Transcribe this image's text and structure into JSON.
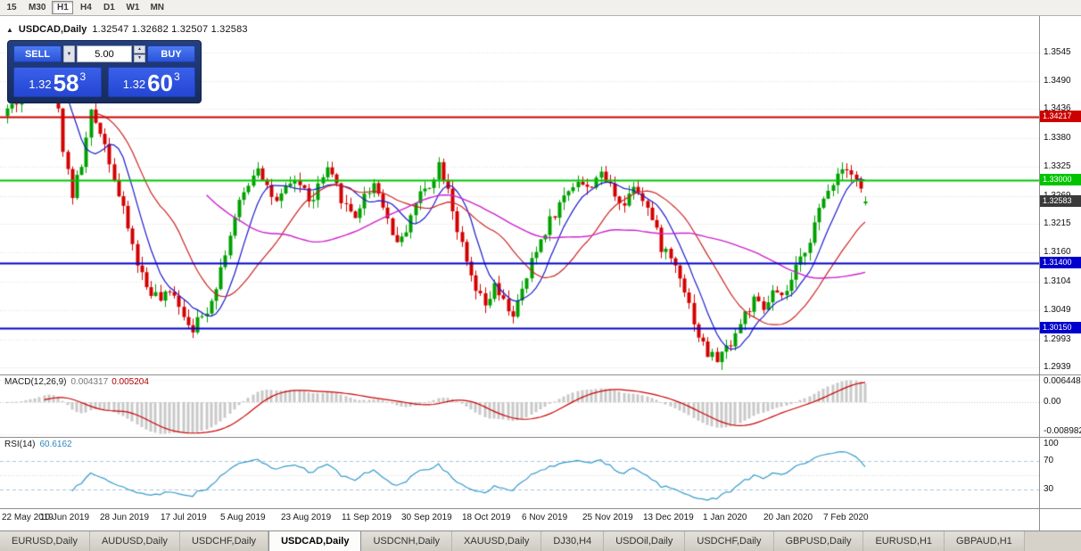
{
  "window": {
    "title": "USDCAD,Daily"
  },
  "toolbar": {
    "timeframes": [
      {
        "label": "15",
        "active": false
      },
      {
        "label": "M30",
        "active": false
      },
      {
        "label": "H1",
        "active": true
      },
      {
        "label": "H4",
        "active": false
      },
      {
        "label": "D1",
        "active": false
      },
      {
        "label": "W1",
        "active": false
      },
      {
        "label": "MN",
        "active": false
      }
    ]
  },
  "chart_header": {
    "symbol": "USDCAD,Daily",
    "ohlc": "1.32547 1.32682 1.32507 1.32583"
  },
  "trade_panel": {
    "sell_label": "SELL",
    "buy_label": "BUY",
    "volume": "5.00",
    "sell_price": {
      "small": "1.32",
      "big": "58",
      "sup": "3"
    },
    "buy_price": {
      "small": "1.32",
      "big": "60",
      "sup": "3"
    }
  },
  "icons": {
    "dropdown": "▼",
    "spin_up": "▲",
    "spin_down": "▼",
    "title_marker": "▲"
  },
  "price_axis": {
    "labels": [
      "1.3545",
      "1.3490",
      "1.3436",
      "1.3380",
      "1.3325",
      "1.3269",
      "1.3215",
      "1.3160",
      "1.3104",
      "1.3049",
      "1.2993",
      "1.2939"
    ]
  },
  "hlines": [
    {
      "price": 1.34217,
      "label": "1.34217",
      "color": "#cc0000",
      "width": 2
    },
    {
      "price": 1.33,
      "label": "1.33000",
      "color": "#00c400",
      "width": 2
    },
    {
      "price": 1.314,
      "label": "1.31400",
      "color": "#0000cc",
      "width": 2
    },
    {
      "price": 1.3015,
      "label": "1.30150",
      "color": "#0000cc",
      "width": 2
    }
  ],
  "current_price": {
    "label": "1.32583",
    "price": 1.32583,
    "bg": "#3a3a3a"
  },
  "macd_panel": {
    "name": "MACD(12,26,9)",
    "value": "0.004317",
    "signal_value": "0.005204",
    "axis_labels": [
      {
        "text": "0.006448",
        "v": 0.006448
      },
      {
        "text": "0.00",
        "v": 0
      },
      {
        "text": "-0.008982",
        "v": -0.008982
      }
    ]
  },
  "rsi_panel": {
    "name": "RSI(14)",
    "value": "60.6162",
    "axis_labels": [
      {
        "text": "100",
        "v": 100
      },
      {
        "text": "70",
        "v": 70
      },
      {
        "text": "30",
        "v": 30
      }
    ],
    "levels": [
      70,
      30
    ]
  },
  "date_axis": {
    "labels": [
      "22 May 2019",
      "10 Jun 2019",
      "28 Jun 2019",
      "17 Jul 2019",
      "5 Aug 2019",
      "23 Aug 2019",
      "11 Sep 2019",
      "30 Sep 2019",
      "18 Oct 2019",
      "6 Nov 2019",
      "25 Nov 2019",
      "13 Dec 2019",
      "1 Jan 2020",
      "20 Jan 2020",
      "7 Feb 2020"
    ]
  },
  "tabs": [
    {
      "label": "EURUSD,Daily",
      "active": false
    },
    {
      "label": "AUDUSD,Daily",
      "active": false
    },
    {
      "label": "USDCHF,Daily",
      "active": false
    },
    {
      "label": "USDCAD,Daily",
      "active": true
    },
    {
      "label": "USDCNH,Daily",
      "active": false
    },
    {
      "label": "XAUUSD,Daily",
      "active": false
    },
    {
      "label": "DJ30,H4",
      "active": false
    },
    {
      "label": "USDOil,Daily",
      "active": false
    },
    {
      "label": "USDCHF,Daily",
      "active": false
    },
    {
      "label": "GBPUSD,Daily",
      "active": false
    },
    {
      "label": "EURUSD,H1",
      "active": false
    },
    {
      "label": "GBPAUD,H1",
      "active": false
    }
  ],
  "colors": {
    "bull": "#00a000",
    "bear": "#d40000",
    "ma_fast": "#1a1acd",
    "ma_mid": "#cd2222",
    "ma_slow": "#cd22cd",
    "macd_hist": "#c8c8c8",
    "macd_signal": "#cc0000",
    "rsi_line": "#3399cc",
    "grid": "#dcdcdc",
    "accent_blue": "#2d55e0"
  },
  "chart_data": {
    "type": "candlestick",
    "symbol": "USDCAD",
    "timeframe": "Daily",
    "title": "USDCAD,Daily",
    "last_ohlc": {
      "open": 1.32547,
      "high": 1.32682,
      "low": 1.32507,
      "close": 1.32583
    },
    "x_axis": {
      "tick_labels": [
        "22 May 2019",
        "10 Jun 2019",
        "28 Jun 2019",
        "17 Jul 2019",
        "5 Aug 2019",
        "23 Aug 2019",
        "11 Sep 2019",
        "30 Sep 2019",
        "18 Oct 2019",
        "6 Nov 2019",
        "25 Nov 2019",
        "13 Dec 2019",
        "1 Jan 2020",
        "20 Jan 2020",
        "7 Feb 2020"
      ],
      "candles_per_tick": 13
    },
    "y_axis": {
      "top_price": 1.3545,
      "bottom_price": 1.2939,
      "tick_labels": [
        "1.3545",
        "1.3490",
        "1.3436",
        "1.3380",
        "1.3325",
        "1.3269",
        "1.3215",
        "1.3160",
        "1.3104",
        "1.3049",
        "1.2993",
        "1.2939"
      ]
    },
    "levels": [
      1.34217,
      1.33,
      1.314,
      1.3015
    ],
    "indicators": {
      "moving_averages": [
        8,
        20,
        44
      ],
      "macd": {
        "params": [
          12,
          26,
          9
        ],
        "value": 0.004317,
        "signal": 0.005204,
        "range": [
          -0.008982,
          0.006448
        ]
      },
      "rsi": {
        "period": 14,
        "value": 60.6162,
        "levels": [
          70,
          30
        ]
      }
    },
    "price_path": [
      [
        0,
        1.3435
      ],
      [
        3,
        1.3458
      ],
      [
        6,
        1.3505
      ],
      [
        8,
        1.3548
      ],
      [
        10,
        1.3495
      ],
      [
        12,
        1.3365
      ],
      [
        14,
        1.3272
      ],
      [
        16,
        1.333
      ],
      [
        18,
        1.3425
      ],
      [
        20,
        1.3398
      ],
      [
        22,
        1.334
      ],
      [
        24,
        1.3268
      ],
      [
        26,
        1.3208
      ],
      [
        28,
        1.314
      ],
      [
        30,
        1.3095
      ],
      [
        33,
        1.3068
      ],
      [
        36,
        1.3085
      ],
      [
        38,
        1.304
      ],
      [
        40,
        1.3018
      ],
      [
        42,
        1.3035
      ],
      [
        44,
        1.3072
      ],
      [
        46,
        1.313
      ],
      [
        48,
        1.3195
      ],
      [
        50,
        1.3252
      ],
      [
        52,
        1.3295
      ],
      [
        54,
        1.333
      ],
      [
        56,
        1.3288
      ],
      [
        58,
        1.3252
      ],
      [
        60,
        1.3278
      ],
      [
        62,
        1.3302
      ],
      [
        64,
        1.3278
      ],
      [
        66,
        1.3255
      ],
      [
        67,
        1.329
      ],
      [
        69,
        1.3315
      ],
      [
        71,
        1.3285
      ],
      [
        73,
        1.3248
      ],
      [
        75,
        1.3232
      ],
      [
        77,
        1.3268
      ],
      [
        79,
        1.3295
      ],
      [
        81,
        1.3255
      ],
      [
        83,
        1.3195
      ],
      [
        85,
        1.3182
      ],
      [
        87,
        1.3235
      ],
      [
        89,
        1.3272
      ],
      [
        91,
        1.3292
      ],
      [
        93,
        1.333
      ],
      [
        95,
        1.3288
      ],
      [
        97,
        1.3205
      ],
      [
        99,
        1.3135
      ],
      [
        101,
        1.3085
      ],
      [
        103,
        1.3055
      ],
      [
        105,
        1.3092
      ],
      [
        107,
        1.3062
      ],
      [
        109,
        1.3042
      ],
      [
        111,
        1.3082
      ],
      [
        113,
        1.314
      ],
      [
        115,
        1.3185
      ],
      [
        117,
        1.3222
      ],
      [
        119,
        1.3252
      ],
      [
        121,
        1.3282
      ],
      [
        123,
        1.3302
      ],
      [
        125,
        1.328
      ],
      [
        127,
        1.3308
      ],
      [
        129,
        1.33
      ],
      [
        131,
        1.3275
      ],
      [
        133,
        1.3252
      ],
      [
        135,
        1.3295
      ],
      [
        137,
        1.3268
      ],
      [
        139,
        1.3222
      ],
      [
        141,
        1.3172
      ],
      [
        143,
        1.315
      ],
      [
        145,
        1.312
      ],
      [
        147,
        1.306
      ],
      [
        149,
        1.3
      ],
      [
        151,
        1.2965
      ],
      [
        153,
        1.2955
      ],
      [
        155,
        1.2975
      ],
      [
        157,
        1.3005
      ],
      [
        159,
        1.3042
      ],
      [
        161,
        1.3065
      ],
      [
        163,
        1.3048
      ],
      [
        165,
        1.3082
      ],
      [
        167,
        1.3068
      ],
      [
        169,
        1.3105
      ],
      [
        171,
        1.3145
      ],
      [
        173,
        1.319
      ],
      [
        175,
        1.3238
      ],
      [
        177,
        1.3282
      ],
      [
        179,
        1.3315
      ],
      [
        181,
        1.333
      ],
      [
        183,
        1.3302
      ],
      [
        185,
        1.3258
      ]
    ]
  }
}
